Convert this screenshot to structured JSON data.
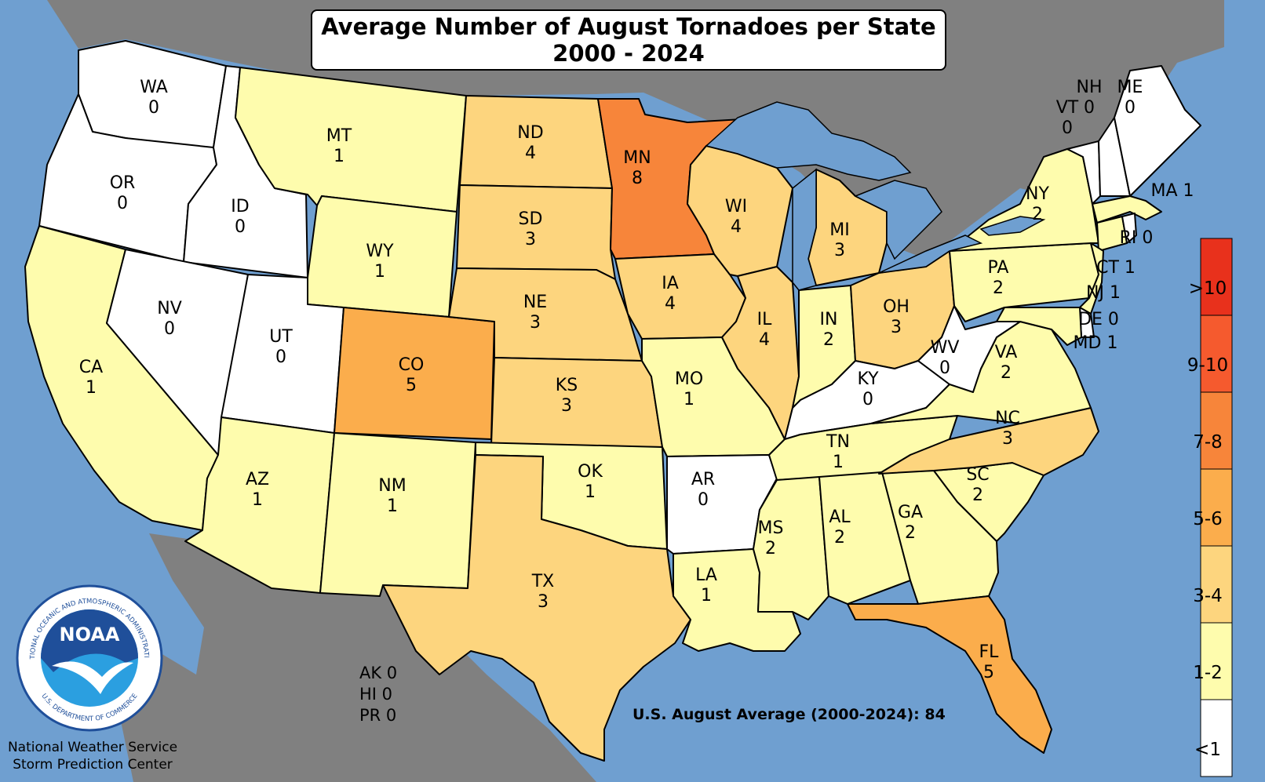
{
  "title": {
    "line1": "Average Number of August Tornadoes per State",
    "line2": "2000 - 2024"
  },
  "summary": "U.S. August Average (2000-2024): 84",
  "footer": {
    "line1": "National Weather Service",
    "line2": "Storm Prediction Center"
  },
  "logo": {
    "name": "NOAA",
    "ring_text": "NATIONAL OCEANIC AND ATMOSPHERIC ADMINISTRATION",
    "ring_text_bottom": "U.S. DEPARTMENT OF COMMERCE"
  },
  "legend": [
    {
      "label": ">10",
      "color": "#e8311c"
    },
    {
      "label": "9-10",
      "color": "#f55a2e"
    },
    {
      "label": "7-8",
      "color": "#f7853a"
    },
    {
      "label": "5-6",
      "color": "#fbad4c"
    },
    {
      "label": "3-4",
      "color": "#fdd57e"
    },
    {
      "label": "1-2",
      "color": "#fefcad"
    },
    {
      "label": "<1",
      "color": "#ffffff"
    }
  ],
  "colors": {
    "ocean": "#6f9fd0",
    "land_outside": "#808080",
    "lakes": "#6f9fd0"
  },
  "states": {
    "WA": {
      "abbr": "WA",
      "value": "0"
    },
    "OR": {
      "abbr": "OR",
      "value": "0"
    },
    "CA": {
      "abbr": "CA",
      "value": "1"
    },
    "ID": {
      "abbr": "ID",
      "value": "0"
    },
    "NV": {
      "abbr": "NV",
      "value": "0"
    },
    "MT": {
      "abbr": "MT",
      "value": "1"
    },
    "WY": {
      "abbr": "WY",
      "value": "1"
    },
    "UT": {
      "abbr": "UT",
      "value": "0"
    },
    "AZ": {
      "abbr": "AZ",
      "value": "1"
    },
    "CO": {
      "abbr": "CO",
      "value": "5"
    },
    "NM": {
      "abbr": "NM",
      "value": "1"
    },
    "ND": {
      "abbr": "ND",
      "value": "4"
    },
    "SD": {
      "abbr": "SD",
      "value": "3"
    },
    "NE": {
      "abbr": "NE",
      "value": "3"
    },
    "KS": {
      "abbr": "KS",
      "value": "3"
    },
    "OK": {
      "abbr": "OK",
      "value": "1"
    },
    "TX": {
      "abbr": "TX",
      "value": "3"
    },
    "MN": {
      "abbr": "MN",
      "value": "8"
    },
    "IA": {
      "abbr": "IA",
      "value": "4"
    },
    "MO": {
      "abbr": "MO",
      "value": "1"
    },
    "AR": {
      "abbr": "AR",
      "value": "0"
    },
    "LA": {
      "abbr": "LA",
      "value": "1"
    },
    "WI": {
      "abbr": "WI",
      "value": "4"
    },
    "IL": {
      "abbr": "IL",
      "value": "4"
    },
    "MI": {
      "abbr": "MI",
      "value": "3"
    },
    "IN": {
      "abbr": "IN",
      "value": "2"
    },
    "OH": {
      "abbr": "OH",
      "value": "3"
    },
    "KY": {
      "abbr": "KY",
      "value": "0"
    },
    "TN": {
      "abbr": "TN",
      "value": "1"
    },
    "MS": {
      "abbr": "MS",
      "value": "2"
    },
    "AL": {
      "abbr": "AL",
      "value": "2"
    },
    "GA": {
      "abbr": "GA",
      "value": "2"
    },
    "FL": {
      "abbr": "FL",
      "value": "5"
    },
    "SC": {
      "abbr": "SC",
      "value": "2"
    },
    "NC": {
      "abbr": "NC",
      "value": "3"
    },
    "VA": {
      "abbr": "VA",
      "value": "2"
    },
    "WV": {
      "abbr": "WV",
      "value": "0"
    },
    "PA": {
      "abbr": "PA",
      "value": "2"
    },
    "NY": {
      "abbr": "NY",
      "value": "2"
    },
    "VT": {
      "abbr": "VT",
      "value": "0"
    },
    "NH": {
      "abbr": "NH",
      "value": "0"
    },
    "ME": {
      "abbr": "ME",
      "value": "0"
    },
    "MA": {
      "label": "MA 1"
    },
    "RI": {
      "label": "RI 0"
    },
    "CT": {
      "label": "CT 1"
    },
    "NJ": {
      "label": "NJ 1"
    },
    "DE": {
      "label": "DE 0"
    },
    "MD": {
      "label": "MD 1"
    }
  },
  "offmap": {
    "AK": "AK 0",
    "HI": "HI 0",
    "PR": "PR 0"
  }
}
